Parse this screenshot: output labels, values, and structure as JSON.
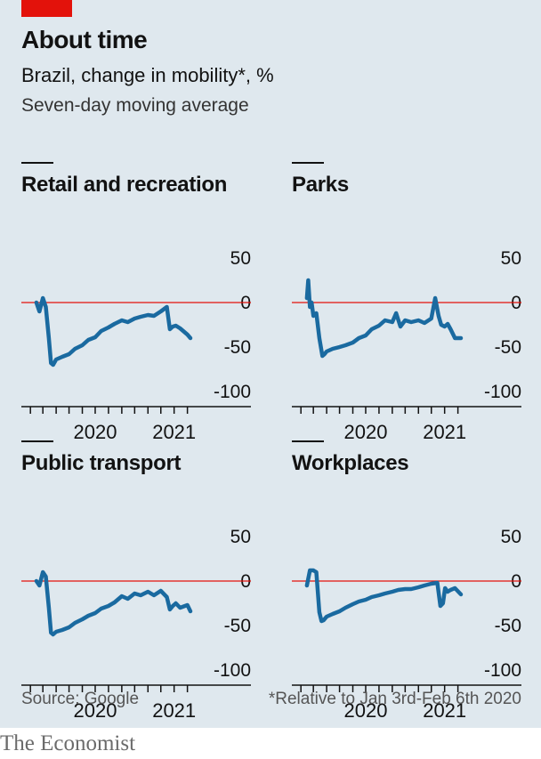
{
  "header": {
    "title": "About time",
    "subtitle": "Brazil, change in mobility*, %",
    "note": "Seven-day moving average"
  },
  "footer": {
    "source": "Source: Google",
    "footnote": "*Relative to Jan 3rd-Feb 6th 2020",
    "brand": "The Economist"
  },
  "colors": {
    "line": "#1a6aa0",
    "zero_line": "#e3120b",
    "background": "#dfe8ee"
  },
  "chart_data": [
    {
      "type": "line",
      "title": "Retail and recreation",
      "yticks": [
        50,
        0,
        -50,
        -100
      ],
      "ylim": [
        -100,
        50
      ],
      "xlim": [
        "2020-01-15",
        "2021-02-08"
      ],
      "xticklabels": [
        {
          "label": "2020",
          "date": "2020-07-01"
        },
        {
          "label": "2021",
          "date": "2021-01-01"
        }
      ],
      "reference_line": 0,
      "x": [
        "2020-02-15",
        "2020-02-22",
        "2020-03-01",
        "2020-03-08",
        "2020-03-15",
        "2020-03-20",
        "2020-03-25",
        "2020-04-01",
        "2020-04-15",
        "2020-05-01",
        "2020-05-15",
        "2020-06-01",
        "2020-06-15",
        "2020-07-01",
        "2020-07-15",
        "2020-08-01",
        "2020-08-15",
        "2020-09-01",
        "2020-09-15",
        "2020-10-01",
        "2020-10-15",
        "2020-11-01",
        "2020-11-15",
        "2020-12-01",
        "2020-12-15",
        "2020-12-22",
        "2020-12-29",
        "2021-01-05",
        "2021-01-15",
        "2021-02-01",
        "2021-02-08"
      ],
      "values": [
        0,
        -10,
        5,
        -5,
        -40,
        -68,
        -70,
        -64,
        -61,
        -58,
        -52,
        -48,
        -42,
        -39,
        -32,
        -28,
        -24,
        -20,
        -22,
        -18,
        -16,
        -14,
        -15,
        -10,
        -5,
        -30,
        -27,
        -26,
        -29,
        -36,
        -40
      ]
    },
    {
      "type": "line",
      "title": "Parks",
      "yticks": [
        50,
        0,
        -50,
        -100
      ],
      "ylim": [
        -100,
        50
      ],
      "xlim": [
        "2020-01-15",
        "2021-02-08"
      ],
      "xticklabels": [
        {
          "label": "2020",
          "date": "2020-07-01"
        },
        {
          "label": "2021",
          "date": "2021-01-01"
        }
      ],
      "reference_line": 0,
      "x": [
        "2020-02-15",
        "2020-02-18",
        "2020-02-22",
        "2020-02-26",
        "2020-03-01",
        "2020-03-08",
        "2020-03-15",
        "2020-03-22",
        "2020-03-27",
        "2020-04-01",
        "2020-04-15",
        "2020-05-01",
        "2020-05-15",
        "2020-06-01",
        "2020-06-15",
        "2020-07-01",
        "2020-07-15",
        "2020-08-01",
        "2020-08-15",
        "2020-09-01",
        "2020-09-10",
        "2020-09-20",
        "2020-10-01",
        "2020-10-15",
        "2020-11-01",
        "2020-11-15",
        "2020-12-01",
        "2020-12-10",
        "2020-12-18",
        "2020-12-24",
        "2021-01-01",
        "2021-01-08",
        "2021-01-15",
        "2021-01-25",
        "2021-02-08"
      ],
      "values": [
        5,
        25,
        -5,
        0,
        -15,
        -12,
        -40,
        -60,
        -58,
        -55,
        -52,
        -50,
        -48,
        -45,
        -40,
        -37,
        -30,
        -26,
        -20,
        -22,
        -12,
        -27,
        -20,
        -22,
        -20,
        -23,
        -18,
        5,
        -15,
        -25,
        -27,
        -24,
        -30,
        -40,
        -40
      ]
    },
    {
      "type": "line",
      "title": "Public transport",
      "yticks": [
        50,
        0,
        -50,
        -100
      ],
      "ylim": [
        -100,
        50
      ],
      "xlim": [
        "2020-01-15",
        "2021-02-08"
      ],
      "xticklabels": [
        {
          "label": "2020",
          "date": "2020-07-01"
        },
        {
          "label": "2021",
          "date": "2021-01-01"
        }
      ],
      "reference_line": 0,
      "x": [
        "2020-02-15",
        "2020-02-22",
        "2020-03-01",
        "2020-03-08",
        "2020-03-15",
        "2020-03-20",
        "2020-03-25",
        "2020-04-01",
        "2020-04-15",
        "2020-05-01",
        "2020-05-15",
        "2020-06-01",
        "2020-06-15",
        "2020-07-01",
        "2020-07-15",
        "2020-08-01",
        "2020-08-15",
        "2020-09-01",
        "2020-09-15",
        "2020-10-01",
        "2020-10-15",
        "2020-11-01",
        "2020-11-15",
        "2020-12-01",
        "2020-12-15",
        "2020-12-22",
        "2020-12-29",
        "2021-01-05",
        "2021-01-15",
        "2021-02-01",
        "2021-02-08"
      ],
      "values": [
        0,
        -5,
        10,
        5,
        -30,
        -58,
        -60,
        -57,
        -55,
        -52,
        -47,
        -43,
        -39,
        -36,
        -31,
        -28,
        -24,
        -17,
        -20,
        -14,
        -16,
        -12,
        -16,
        -11,
        -18,
        -32,
        -28,
        -25,
        -30,
        -27,
        -34
      ]
    },
    {
      "type": "line",
      "title": "Workplaces",
      "yticks": [
        50,
        0,
        -50,
        -100
      ],
      "ylim": [
        -100,
        50
      ],
      "xlim": [
        "2020-01-15",
        "2021-02-08"
      ],
      "xticklabels": [
        {
          "label": "2020",
          "date": "2020-07-01"
        },
        {
          "label": "2021",
          "date": "2021-01-01"
        }
      ],
      "reference_line": 0,
      "x": [
        "2020-02-15",
        "2020-02-22",
        "2020-03-01",
        "2020-03-08",
        "2020-03-15",
        "2020-03-20",
        "2020-03-25",
        "2020-04-01",
        "2020-04-15",
        "2020-05-01",
        "2020-05-15",
        "2020-06-01",
        "2020-06-15",
        "2020-07-01",
        "2020-07-15",
        "2020-08-01",
        "2020-08-15",
        "2020-09-01",
        "2020-09-15",
        "2020-10-01",
        "2020-10-15",
        "2020-11-01",
        "2020-11-15",
        "2020-12-01",
        "2020-12-15",
        "2020-12-22",
        "2020-12-28",
        "2021-01-02",
        "2021-01-08",
        "2021-01-15",
        "2021-01-25",
        "2021-02-08"
      ],
      "values": [
        -5,
        12,
        12,
        10,
        -35,
        -45,
        -44,
        -40,
        -37,
        -34,
        -30,
        -26,
        -23,
        -21,
        -18,
        -16,
        -14,
        -12,
        -10,
        -9,
        -9,
        -7,
        -5,
        -3,
        -2,
        -28,
        -25,
        -8,
        -12,
        -10,
        -8,
        -15
      ]
    }
  ]
}
